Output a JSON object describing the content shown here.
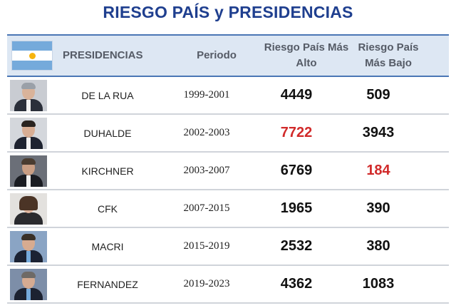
{
  "title": "RIESGO PAÍS y PRESIDENCIAS",
  "header": {
    "presidencias": "PRESIDENCIAS",
    "periodo": "Periodo",
    "alto": "Riesgo País Más Alto",
    "bajo": "Riesgo País Más Bajo"
  },
  "colors": {
    "title": "#1f3f8f",
    "highlight": "#d12a2a",
    "header_bg": "#dde7f3"
  },
  "rows": [
    {
      "name": "DE LA RUA",
      "periodo": "1999-2001",
      "alto": "4449",
      "bajo": "509"
    },
    {
      "name": "DUHALDE",
      "periodo": "2002-2003",
      "alto": "7722",
      "bajo": "3943"
    },
    {
      "name": "KIRCHNER",
      "periodo": "2003-2007",
      "alto": "6769",
      "bajo": "184"
    },
    {
      "name": "CFK",
      "periodo": "2007-2015",
      "alto": "1965",
      "bajo": "390"
    },
    {
      "name": "MACRI",
      "periodo": "2015-2019",
      "alto": "2532",
      "bajo": "380"
    },
    {
      "name": "FERNANDEZ",
      "periodo": "2019-2023",
      "alto": "4362",
      "bajo": "1083"
    }
  ]
}
